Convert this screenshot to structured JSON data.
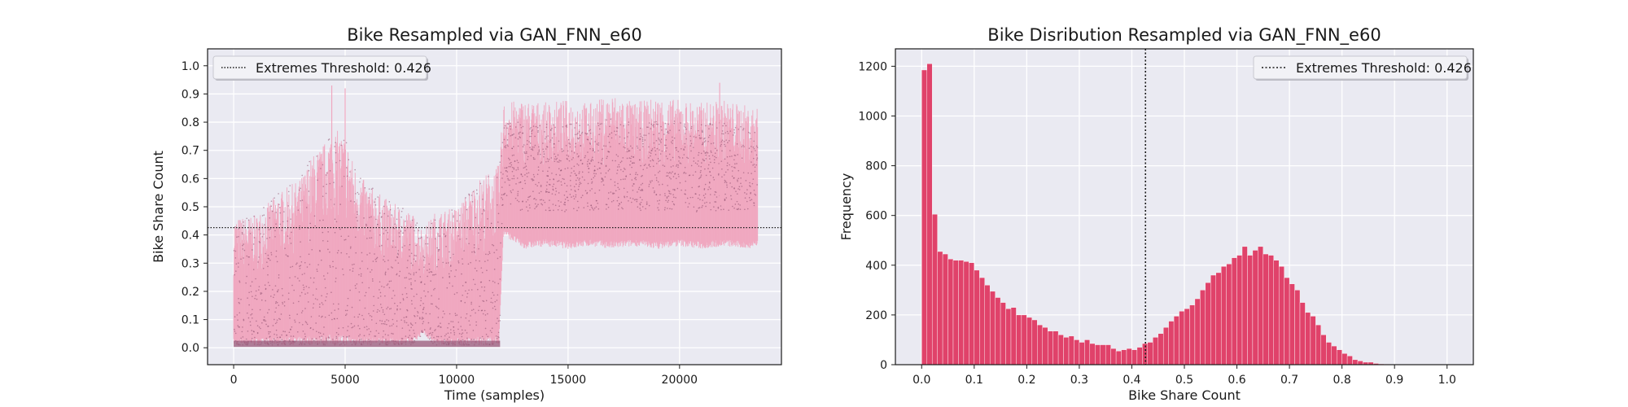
{
  "chart_data": [
    {
      "type": "line",
      "title": "Bike Resampled via GAN_FNN_e60",
      "xlabel": "Time (samples)",
      "ylabel": "Bike Share Count",
      "xlim": [
        -1170,
        24570
      ],
      "ylim": [
        -0.06,
        1.06
      ],
      "xticks": [
        0,
        5000,
        10000,
        15000,
        20000
      ],
      "yticks": [
        0.0,
        0.1,
        0.2,
        0.3,
        0.4,
        0.5,
        0.6,
        0.7,
        0.8,
        0.9,
        1.0
      ],
      "grid": true,
      "legend_position": "top-left",
      "series": [
        {
          "kind": "envelope",
          "x": [
            0,
            1000,
            2000,
            3000,
            3500,
            4000,
            4500,
            5000,
            5500,
            6000,
            7000,
            8000,
            8500,
            9000,
            10000,
            11000,
            11900,
            12100,
            13000,
            14000,
            15000,
            16000,
            17000,
            18000,
            19000,
            20000,
            21000,
            22000,
            23000,
            23500
          ],
          "low": [
            0.01,
            0.01,
            0.01,
            0.01,
            0.01,
            0.01,
            0.01,
            0.01,
            0.01,
            0.01,
            0.01,
            0.01,
            0.05,
            0.01,
            0.01,
            0.01,
            0.01,
            0.4,
            0.35,
            0.36,
            0.35,
            0.36,
            0.35,
            0.36,
            0.35,
            0.36,
            0.35,
            0.36,
            0.35,
            0.36
          ],
          "high": [
            0.46,
            0.47,
            0.55,
            0.6,
            0.68,
            0.72,
            0.78,
            0.75,
            0.63,
            0.58,
            0.52,
            0.48,
            0.42,
            0.48,
            0.5,
            0.6,
            0.65,
            0.87,
            0.88,
            0.87,
            0.88,
            0.87,
            0.9,
            0.87,
            0.89,
            0.88,
            0.87,
            0.88,
            0.86,
            0.85
          ]
        }
      ],
      "spikes": [
        {
          "x": 4400,
          "y": 0.93
        },
        {
          "x": 5000,
          "y": 0.92
        },
        {
          "x": 21800,
          "y": 0.94
        }
      ],
      "threshold": {
        "value": 0.426,
        "label": "Extremes Threshold: 0.426"
      },
      "colors": {
        "fill": "#f0a8c0",
        "dots": "#8a4d6c",
        "base": "#9a5878"
      }
    },
    {
      "type": "bar",
      "title": "Bike Disribution Resampled via GAN_FNN_e60",
      "xlabel": "Bike Share Count",
      "ylabel": "Frequency",
      "xlim": [
        -0.05,
        1.05
      ],
      "ylim": [
        0,
        1270
      ],
      "xticks": [
        0.0,
        0.1,
        0.2,
        0.3,
        0.4,
        0.5,
        0.6,
        0.7,
        0.8,
        0.9,
        1.0
      ],
      "yticks": [
        0,
        200,
        400,
        600,
        800,
        1000,
        1200
      ],
      "grid": true,
      "legend_position": "top-right",
      "bin_start": 0.0,
      "bin_width": 0.01,
      "values": [
        1185,
        1210,
        605,
        455,
        445,
        425,
        420,
        420,
        415,
        410,
        380,
        350,
        320,
        295,
        270,
        250,
        225,
        230,
        200,
        200,
        190,
        180,
        160,
        150,
        135,
        135,
        120,
        110,
        115,
        100,
        90,
        100,
        85,
        80,
        80,
        80,
        65,
        55,
        60,
        65,
        60,
        70,
        85,
        90,
        110,
        125,
        150,
        175,
        195,
        215,
        225,
        240,
        265,
        300,
        330,
        360,
        370,
        395,
        405,
        430,
        440,
        475,
        440,
        460,
        475,
        445,
        440,
        420,
        395,
        350,
        325,
        300,
        250,
        210,
        195,
        160,
        120,
        90,
        75,
        60,
        45,
        35,
        20,
        15,
        10,
        10,
        5,
        3,
        2,
        1,
        1
      ],
      "threshold": {
        "value": 0.426,
        "label": "Extremes Threshold: 0.426"
      },
      "colors": {
        "bar": "#e0426a",
        "bar_edge": "#ffffff"
      }
    }
  ]
}
